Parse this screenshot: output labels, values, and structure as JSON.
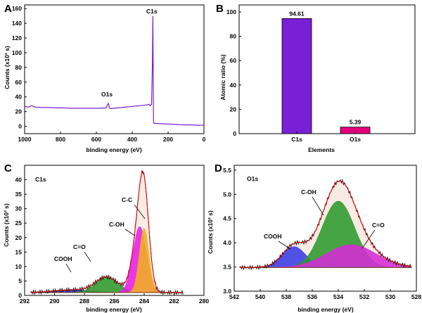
{
  "panels": {
    "A": {
      "letter": "A",
      "xlabel": "binding energy (eV)",
      "ylabel": "Counts (x10³ s)",
      "annotations": [
        "C1s",
        "O1s"
      ]
    },
    "B": {
      "letter": "B",
      "xlabel": "Elements",
      "ylabel": "Atomic ratio (%)"
    },
    "C": {
      "letter": "C",
      "title": "C1s",
      "xlabel": "binding energy (eV)",
      "ylabel": "Counts (x10³ s)",
      "annotations": [
        "C-C",
        "C-OH",
        "C=O",
        "COOH"
      ]
    },
    "D": {
      "letter": "D",
      "title": "O1s",
      "xlabel": "binding energy (eV)",
      "ylabel": "Counts (x10³ s)",
      "annotations": [
        "C-OH",
        "C=O",
        "COOH"
      ]
    }
  },
  "chart_data": [
    {
      "type": "line",
      "id": "A",
      "xlim": [
        1000,
        0
      ],
      "ylim": [
        -10,
        165
      ],
      "xticks": [
        1000,
        800,
        600,
        400,
        200,
        0
      ],
      "yticks": [
        0,
        20,
        40,
        60,
        80,
        100,
        120,
        140,
        160
      ],
      "color": "#7a1fd6",
      "x": [
        1000,
        980,
        960,
        940,
        900,
        860,
        820,
        780,
        740,
        700,
        660,
        620,
        580,
        545,
        537,
        532,
        528,
        520,
        480,
        440,
        400,
        360,
        320,
        305,
        300,
        292,
        288,
        285,
        283,
        281,
        278,
        270,
        240,
        200,
        160,
        120,
        80,
        40,
        0
      ],
      "y": [
        27,
        26,
        28,
        26,
        25.5,
        25.5,
        25,
        25,
        24.5,
        24.5,
        24.5,
        24.5,
        24.5,
        25,
        30,
        31,
        25,
        24,
        25,
        26,
        27,
        28,
        29,
        30,
        28,
        30,
        80,
        150,
        80,
        5,
        4,
        4,
        3.5,
        3,
        2.5,
        2,
        2,
        1.5,
        1.5
      ]
    },
    {
      "type": "bar",
      "id": "B",
      "categories": [
        "C1s",
        "O1s"
      ],
      "values": [
        94.61,
        5.39
      ],
      "value_labels": [
        "94.61",
        "5.39"
      ],
      "colors": [
        "#7a1fd6",
        "#e3007a"
      ],
      "ylim": [
        0,
        100
      ],
      "yticks": [
        0,
        20,
        40,
        60,
        80,
        100
      ]
    },
    {
      "type": "line",
      "id": "C",
      "xlim": [
        292,
        280
      ],
      "ylim": [
        0,
        45
      ],
      "xticks": [
        292,
        290,
        288,
        286,
        284,
        282,
        280
      ],
      "yticks": [
        0,
        5,
        10,
        15,
        20,
        25,
        30,
        35,
        40
      ],
      "background": 1.0,
      "x_range": [
        291.6,
        281.4
      ],
      "series": [
        {
          "label": "COOH",
          "center": 288.8,
          "height": 0.9,
          "sigma": 1.2,
          "color": "#2a35d6"
        },
        {
          "label": "C=O",
          "center": 286.5,
          "height": 5.3,
          "sigma": 0.75,
          "color": "#2e9a2e"
        },
        {
          "label": "C-OH",
          "center": 284.3,
          "height": 22.8,
          "sigma": 0.45,
          "color": "#e91ce6"
        },
        {
          "label": "C-C",
          "center": 284.0,
          "height": 22.2,
          "sigma": 0.32,
          "color": "#f0b020"
        }
      ]
    },
    {
      "type": "line",
      "id": "D",
      "xlim": [
        542,
        528
      ],
      "ylim": [
        3.0,
        5.6
      ],
      "xticks": [
        542,
        540,
        538,
        536,
        534,
        532,
        530,
        528
      ],
      "yticks": [
        3.0,
        3.5,
        4.0,
        4.5,
        5.0,
        5.5
      ],
      "background": 3.49,
      "x_range": [
        541.6,
        528.4
      ],
      "series": [
        {
          "label": "COOH",
          "center": 537.4,
          "height": 0.43,
          "sigma": 0.9,
          "color": "#3b3be6"
        },
        {
          "label": "C-OH",
          "center": 534.0,
          "height": 1.37,
          "sigma": 1.25,
          "color": "#2e9a2e"
        },
        {
          "label": "C=O",
          "center": 533.0,
          "height": 0.47,
          "sigma": 1.9,
          "color": "#d62bd6"
        }
      ]
    }
  ]
}
